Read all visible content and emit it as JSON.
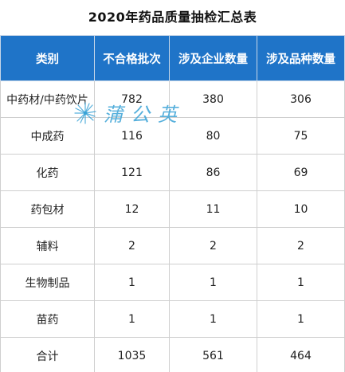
{
  "title": "2020年药品质量抽检汇总表",
  "headers": [
    "类别",
    "不合格批次",
    "涉及企业数量",
    "涉及品种数量"
  ],
  "rows": [
    [
      "中药材/中药饮片",
      "782",
      "380",
      "306"
    ],
    [
      "中成药",
      "116",
      "80",
      "75"
    ],
    [
      "化药",
      "121",
      "86",
      "69"
    ],
    [
      "药包材",
      "12",
      "11",
      "10"
    ],
    [
      "辅料",
      "2",
      "2",
      "2"
    ],
    [
      "生物制品",
      "1",
      "1",
      "1"
    ],
    [
      "苗药",
      "1",
      "1",
      "1"
    ],
    [
      "合计",
      "1035",
      "561",
      "464"
    ]
  ],
  "watermark": {
    "text": "蒲公英",
    "icon": "dandelion-icon",
    "color": "#3aa3d6"
  },
  "colors": {
    "header_bg": "#1f74c8",
    "header_text": "#ffffff",
    "border": "#cfcfcf"
  }
}
